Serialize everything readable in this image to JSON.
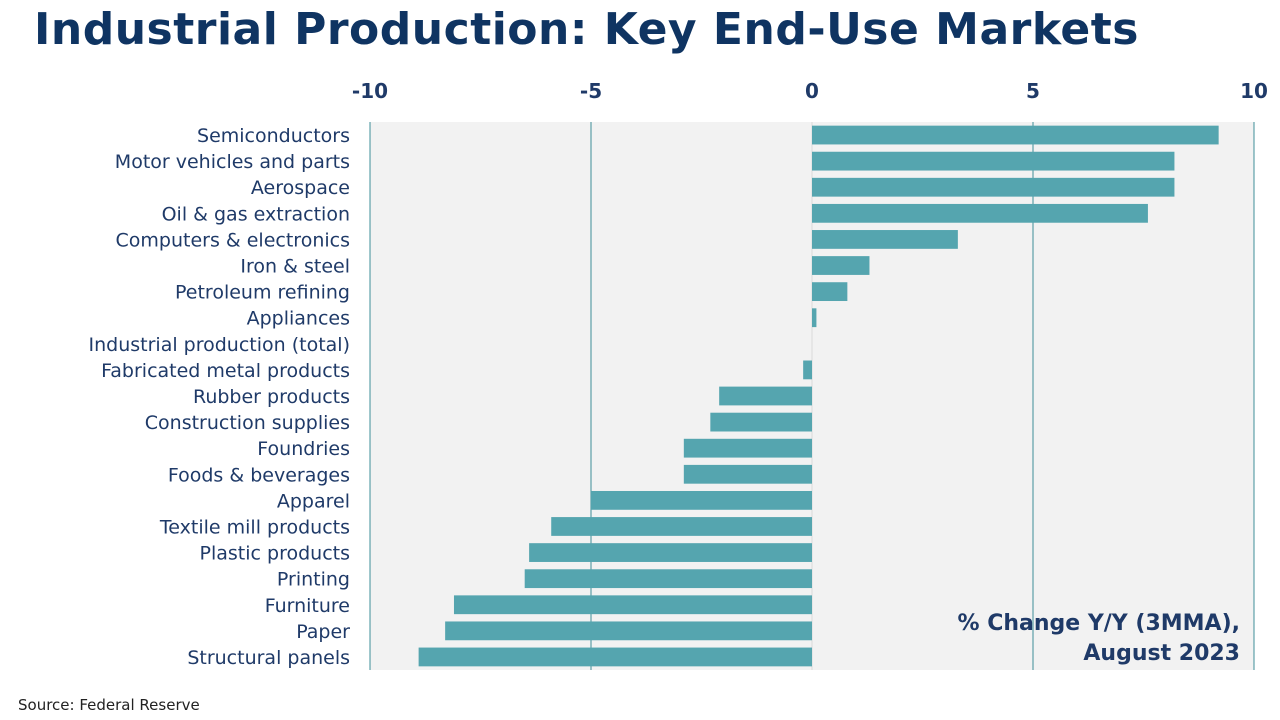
{
  "header": {
    "title": "Industrial Production: Key End-Use Markets"
  },
  "footer": {
    "source": "Source:  Federal Reserve"
  },
  "colors": {
    "bar": "#55a5af",
    "plot_background": "#f2f2f2",
    "gridline": "#3f8f98",
    "title": "#0f3462",
    "label": "#1f3a68"
  },
  "chart_data": {
    "type": "bar",
    "orientation": "horizontal",
    "title": "Industrial Production: Key End-Use Markets",
    "annotation": [
      "% Change Y/Y (3MMA),",
      "August 2023"
    ],
    "xlim": [
      -10,
      10
    ],
    "xticks": [
      -10,
      -5,
      0,
      5,
      10
    ],
    "xtick_labels": [
      "-10",
      "-5",
      "0",
      "5",
      "10"
    ],
    "x_axis_position": "top",
    "grid": true,
    "categories": [
      "Semiconductors",
      "Motor vehicles and parts",
      "Aerospace",
      "Oil & gas extraction",
      "Computers & electronics",
      "Iron & steel",
      "Petroleum refining",
      "Appliances",
      "Industrial production (total)",
      "Fabricated metal products",
      "Rubber products",
      "Construction supplies",
      "Foundries",
      "Foods & beverages",
      "Apparel",
      "Textile mill products",
      "Plastic products",
      "Printing",
      "Furniture",
      "Paper",
      "Structural panels"
    ],
    "values": [
      9.2,
      8.2,
      8.2,
      7.6,
      3.3,
      1.3,
      0.8,
      0.1,
      0.0,
      -0.2,
      -2.1,
      -2.3,
      -2.9,
      -2.9,
      -5.0,
      -5.9,
      -6.4,
      -6.5,
      -8.1,
      -8.3,
      -8.9
    ]
  }
}
